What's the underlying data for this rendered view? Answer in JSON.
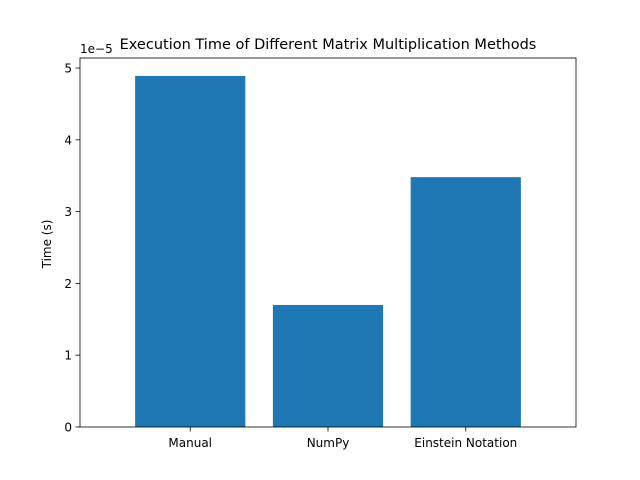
{
  "chart_data": {
    "type": "bar",
    "title": "Execution Time of Different Matrix Multiplication Methods",
    "xlabel": "",
    "ylabel": "Time (s)",
    "y_offset_label": "1e−5",
    "categories": [
      "Manual",
      "NumPy",
      "Einstein Notation"
    ],
    "values": [
      4.89e-05,
      1.7e-05,
      3.48e-05
    ],
    "ylim": [
      0,
      5.14e-05
    ],
    "yticks": [
      0,
      1e-05,
      2e-05,
      3e-05,
      4e-05,
      5e-05
    ],
    "ytick_labels": [
      "0",
      "1",
      "2",
      "3",
      "4",
      "5"
    ],
    "bar_color": "#1f77b4",
    "grid": false,
    "legend": "none"
  }
}
